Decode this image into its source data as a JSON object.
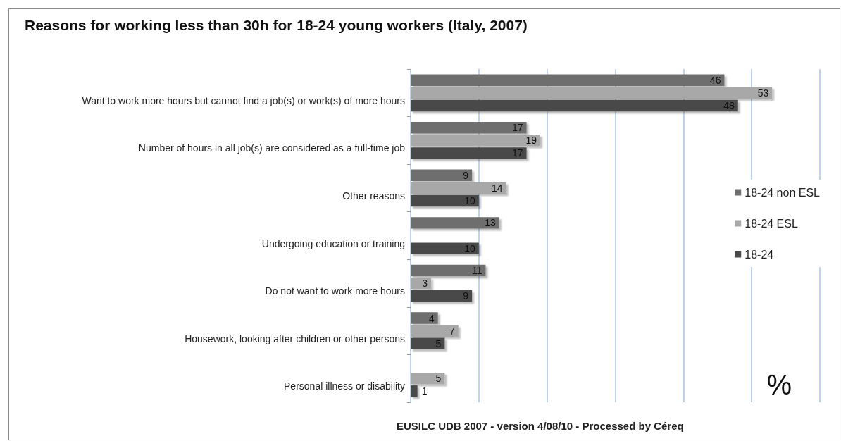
{
  "chart_data": {
    "type": "bar",
    "orientation": "horizontal",
    "title": "Reasons for working less than 30h for 18-24 young workers (Italy, 2007)",
    "categories": [
      "Want to work more hours but cannot find a job(s) or work(s) of more hours",
      "Number of hours in all job(s) are considered as a full-time job",
      "Other reasons",
      "Undergoing education or training",
      "Do not want to work more hours",
      "Housework, looking after children or other persons",
      "Personal illness or disability"
    ],
    "series": [
      {
        "name": "18-24 non ESL",
        "color": "#6e6e6e",
        "values": [
          46,
          17,
          9,
          13,
          11,
          4,
          null
        ]
      },
      {
        "name": "18-24 ESL",
        "color": "#a8a8a8",
        "values": [
          53,
          19,
          14,
          null,
          3,
          7,
          5
        ]
      },
      {
        "name": "18-24",
        "color": "#4a4a4a",
        "values": [
          48,
          17,
          10,
          10,
          9,
          5,
          1
        ]
      }
    ],
    "xlim": [
      0,
      60
    ],
    "xticks": [
      {
        "value": 0,
        "label": null
      },
      {
        "value": 10,
        "label": null
      },
      {
        "value": 20,
        "label": null
      },
      {
        "value": 30,
        "label": null
      },
      {
        "value": 40,
        "label": null
      },
      {
        "value": 50,
        "label": null
      },
      {
        "value": 60,
        "label": null
      }
    ],
    "tick_labels": "y",
    "grid": "x",
    "legend": "right",
    "data_labels": true,
    "annotations": [
      "%",
      "EUSILC UDB 2007 - version 4/08/10 - Processed by Céreq"
    ]
  }
}
